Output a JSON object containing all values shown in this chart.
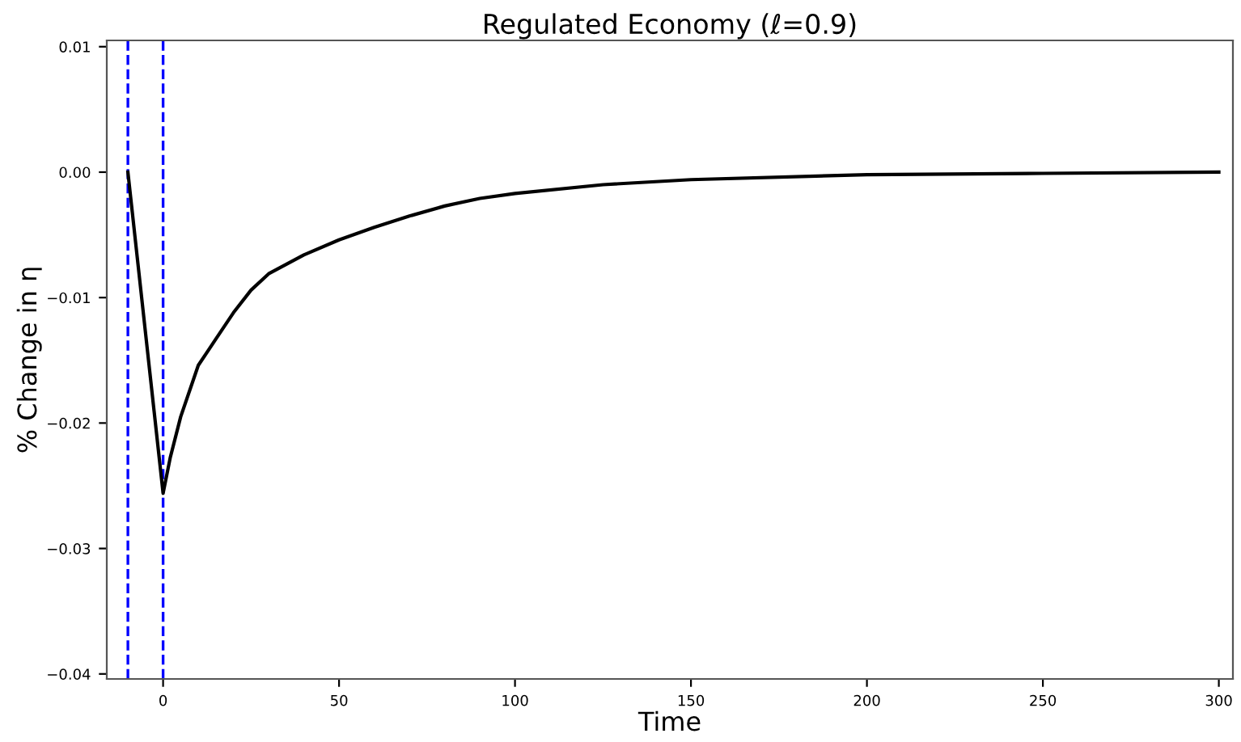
{
  "chart_data": {
    "type": "line",
    "title": "Regulated Economy (ℓ=0.9)",
    "xlabel": "Time",
    "ylabel": "% Change in η",
    "xlim": [
      -16,
      304
    ],
    "ylim": [
      -0.0404,
      0.0105
    ],
    "xticks": [
      0,
      50,
      100,
      150,
      200,
      250,
      300
    ],
    "yticks": [
      {
        "value": 0.01,
        "label": "0.01"
      },
      {
        "value": 0.0,
        "label": "0.00"
      },
      {
        "value": -0.01,
        "label": "−0.01"
      },
      {
        "value": -0.02,
        "label": "−0.02"
      },
      {
        "value": -0.03,
        "label": "−0.03"
      },
      {
        "value": -0.04,
        "label": "−0.04"
      }
    ],
    "grid": false,
    "legend": false,
    "marker": "none",
    "line_style": "solid",
    "ref_lines": [
      {
        "axis": "x",
        "value": -10,
        "label": null,
        "color": "#0000ff",
        "line_style": "dashed"
      },
      {
        "axis": "x",
        "value": 0,
        "label": null,
        "color": "#0000ff",
        "line_style": "dashed"
      }
    ],
    "series": [
      {
        "color": "#000000",
        "x": [
          -10,
          0,
          2,
          5,
          10,
          15,
          20,
          25,
          30,
          40,
          50,
          60,
          70,
          80,
          90,
          100,
          125,
          150,
          200,
          250,
          300
        ],
        "values": [
          0.0,
          -0.0256,
          -0.0228,
          -0.0195,
          -0.0154,
          -0.0133,
          -0.0112,
          -0.0094,
          -0.0081,
          -0.0066,
          -0.0054,
          -0.0044,
          -0.0035,
          -0.0027,
          -0.0021,
          -0.0017,
          -0.001,
          -0.0006,
          -0.0002,
          -0.0001,
          0.0
        ]
      }
    ]
  }
}
